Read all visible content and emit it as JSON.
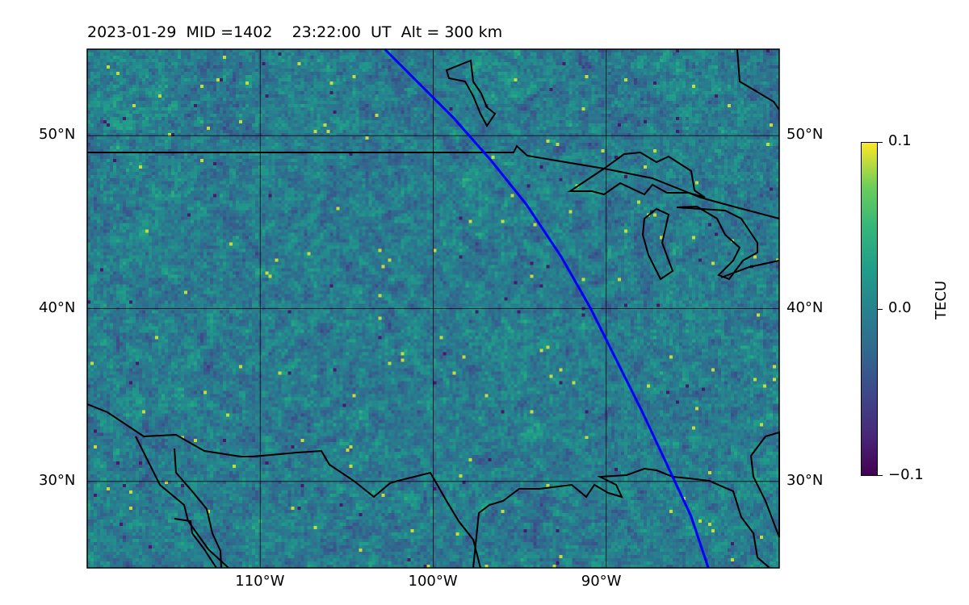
{
  "title": "2023-01-29  MID =1402    23:22:00  UT  Alt = 300 km",
  "map": {
    "projection": "equirectangular",
    "lon_range": [
      -120,
      -80
    ],
    "lat_range": [
      25,
      55
    ],
    "grid": true,
    "lon_ticks": [
      {
        "value": -110,
        "label": "110°W"
      },
      {
        "value": -100,
        "label": "100°W"
      },
      {
        "value": -90,
        "label": "90°W"
      }
    ],
    "lat_ticks": [
      {
        "value": 30,
        "label": "30°N"
      },
      {
        "value": 40,
        "label": "40°N"
      },
      {
        "value": 50,
        "label": "50°N"
      }
    ],
    "field": "TEC perturbation",
    "colormap": "viridis",
    "track_color": "#0000ff",
    "track": [
      [
        -102.8,
        55
      ],
      [
        -100.8,
        53
      ],
      [
        -98.8,
        51
      ],
      [
        -96.6,
        48.5
      ],
      [
        -94.6,
        46
      ],
      [
        -92.6,
        43
      ],
      [
        -90.9,
        40
      ],
      [
        -89.4,
        37
      ],
      [
        -87.9,
        34
      ],
      [
        -86.5,
        31
      ],
      [
        -85.1,
        28
      ],
      [
        -84.1,
        25
      ]
    ]
  },
  "colorbar": {
    "label": "TECU",
    "min": -0.1,
    "max": 0.1,
    "ticks": [
      {
        "value": 0.1,
        "label": "0.1"
      },
      {
        "value": 0.0,
        "label": "0.0"
      },
      {
        "value": -0.1,
        "label": "−0.1"
      }
    ]
  }
}
